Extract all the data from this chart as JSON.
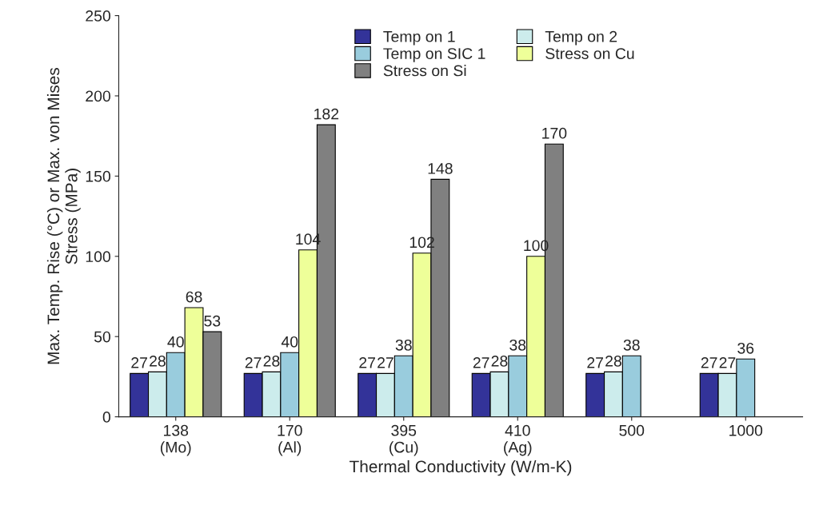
{
  "chart_data": {
    "type": "bar",
    "xlabel": "Thermal Conductivity (W/m-K)",
    "ylabel": "Max. Temp. Rise (°C) or Max. von Mises\nStress (MPa)",
    "categories": [
      "138\n(Mo)",
      "170\n(Al)",
      "395\n(Cu)",
      "410\n(Ag)",
      "500",
      "1000"
    ],
    "series": [
      {
        "name": "Temp on 1",
        "color": "#333399",
        "values": [
          27,
          27,
          27,
          27,
          27,
          27
        ]
      },
      {
        "name": "Temp on 2",
        "color": "#ccecec",
        "values": [
          28,
          28,
          27,
          28,
          28,
          27
        ]
      },
      {
        "name": "Temp on SIC 1",
        "color": "#99ccdd",
        "values": [
          40,
          40,
          38,
          38,
          38,
          36
        ]
      },
      {
        "name": "Stress on Cu",
        "color": "#eeff99",
        "values": [
          68,
          104,
          102,
          100,
          null,
          null
        ]
      },
      {
        "name": "Stress on Si",
        "color": "#808080",
        "values": [
          53,
          182,
          148,
          170,
          null,
          null
        ]
      }
    ],
    "ylim": [
      0,
      250
    ],
    "yticks": [
      0,
      50,
      100,
      150,
      200,
      250
    ],
    "data_labels": true,
    "legend": "top",
    "grid": false
  }
}
